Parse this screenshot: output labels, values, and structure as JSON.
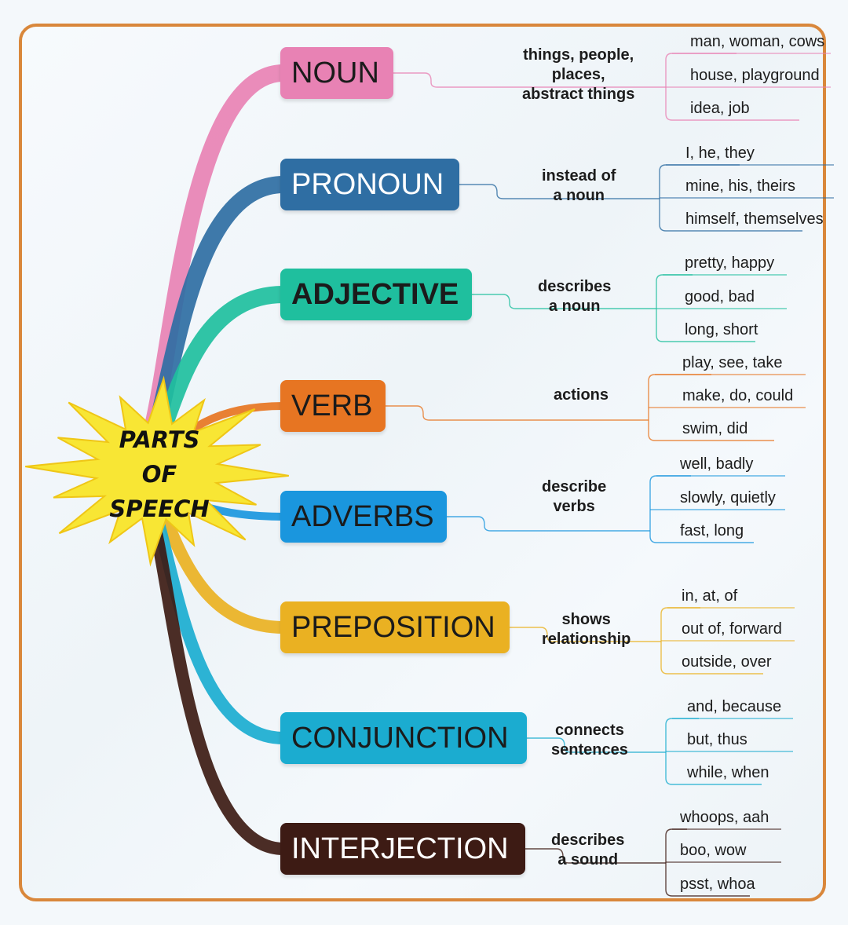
{
  "center": {
    "lines": [
      "PARTS",
      "OF",
      "SPEECH"
    ]
  },
  "parts": [
    {
      "label": "NOUN",
      "color": "#e882b4",
      "text_color": "#1b1b1b",
      "definition": [
        "things, people,",
        "places,",
        "abstract things"
      ],
      "examples": [
        "man, woman, cows",
        "house, playground",
        "idea, job"
      ]
    },
    {
      "label": "PRONOUN",
      "color": "#2f6ea3",
      "text_color": "#ffffff",
      "definition": [
        "instead of",
        "a noun"
      ],
      "examples": [
        "I, he, they",
        "mine, his, theirs",
        "himself, themselves"
      ]
    },
    {
      "label": "ADJECTIVE",
      "color": "#1fbf9e",
      "text_color": "#1b1b1b",
      "definition": [
        "describes",
        "a noun"
      ],
      "examples": [
        "pretty, happy",
        "good, bad",
        "long, short"
      ]
    },
    {
      "label": "VERB",
      "color": "#e77522",
      "text_color": "#1b1b1b",
      "definition": [
        "actions"
      ],
      "examples": [
        "play, see, take",
        "make, do, could",
        "swim, did"
      ]
    },
    {
      "label": "ADVERBS",
      "color": "#1a96de",
      "text_color": "#1b1b1b",
      "definition": [
        "describe",
        "verbs"
      ],
      "examples": [
        "well, badly",
        "slowly, quietly",
        "fast, long"
      ]
    },
    {
      "label": "PREPOSITION",
      "color": "#eab122",
      "text_color": "#1b1b1b",
      "definition": [
        "shows",
        "relationship"
      ],
      "examples": [
        "in, at, of",
        "out of, forward",
        "outside, over"
      ]
    },
    {
      "label": "CONJUNCTION",
      "color": "#1bacd0",
      "text_color": "#1b1b1b",
      "definition": [
        "connects",
        "sentences"
      ],
      "examples": [
        "and, because",
        "but, thus",
        "while, when"
      ]
    },
    {
      "label": "INTERJECTION",
      "color": "#3d1b14",
      "text_color": "#ffffff",
      "definition": [
        "describes",
        "a sound"
      ],
      "examples": [
        "whoops, aah",
        "boo, wow",
        "psst, whoa"
      ]
    }
  ]
}
